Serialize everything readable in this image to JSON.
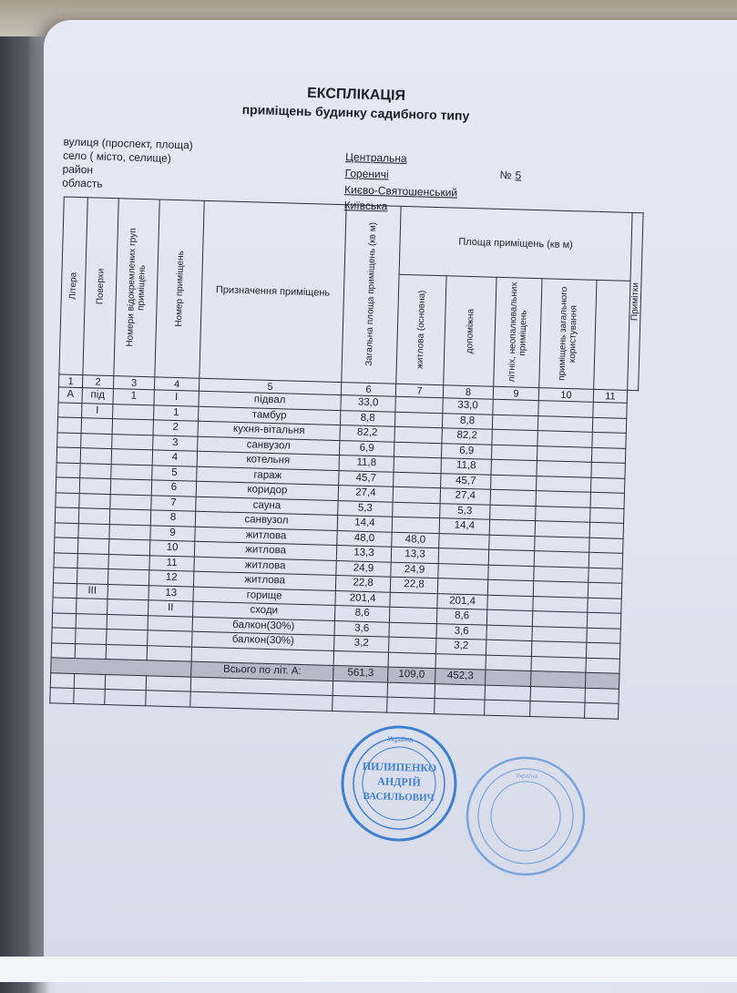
{
  "document": {
    "title": "ЕКСПЛІКАЦІЯ",
    "subtitle": "приміщень  будинку садибного типу",
    "address": [
      {
        "label": "вулиця (проспект, площа)",
        "value": "Центральна"
      },
      {
        "label": "село ( місто, селище)",
        "value": "Гореничі"
      },
      {
        "label": "район",
        "value": "Києво-Святошенський"
      },
      {
        "label": "область",
        "value": "Київська"
      }
    ],
    "number_label": "№",
    "number_value": "5"
  },
  "table": {
    "headers": {
      "litera": "Літера",
      "floors": "Поверхи",
      "groups": "Номери відокремлених груп приміщень",
      "room_no": "Номер приміщень",
      "purpose": "Призначення приміщень",
      "total_area": "Загальна площа приміщень (кв м)",
      "area_group": "Площа приміщень (кв м)",
      "living": "житлова (основна)",
      "auxiliary": "допоміжна",
      "summer": "літніх, неопалювальних приміщень",
      "common": "приміщень загального користування",
      "notes": "Примітки"
    },
    "column_numbers": [
      "1",
      "2",
      "3",
      "4",
      "5",
      "6",
      "7",
      "8",
      "9",
      "10",
      "11"
    ],
    "rows": [
      [
        "А",
        "під",
        "1",
        "I",
        "підвал",
        "33,0",
        "",
        "33,0"
      ],
      [
        "",
        "I",
        "",
        "1",
        "тамбур",
        "8,8",
        "",
        "8,8"
      ],
      [
        "",
        "",
        "",
        "2",
        "кухня-вітальня",
        "82,2",
        "",
        "82,2"
      ],
      [
        "",
        "",
        "",
        "3",
        "санвузол",
        "6,9",
        "",
        "6,9"
      ],
      [
        "",
        "",
        "",
        "4",
        "котельня",
        "11,8",
        "",
        "11,8"
      ],
      [
        "",
        "",
        "",
        "5",
        "гараж",
        "45,7",
        "",
        "45,7"
      ],
      [
        "",
        "",
        "",
        "6",
        "коридор",
        "27,4",
        "",
        "27,4"
      ],
      [
        "",
        "",
        "",
        "7",
        "сауна",
        "5,3",
        "",
        "5,3"
      ],
      [
        "",
        "",
        "",
        "8",
        "санвузол",
        "14,4",
        "",
        "14,4"
      ],
      [
        "",
        "",
        "",
        "9",
        "житлова",
        "48,0",
        "48,0",
        ""
      ],
      [
        "",
        "",
        "",
        "10",
        "житлова",
        "13,3",
        "13,3",
        ""
      ],
      [
        "",
        "",
        "",
        "11",
        "житлова",
        "24,9",
        "24,9",
        ""
      ],
      [
        "",
        "",
        "",
        "12",
        "житлова",
        "22,8",
        "22,8",
        ""
      ],
      [
        "",
        "III",
        "",
        "13",
        "горище",
        "201,4",
        "",
        "201,4"
      ],
      [
        "",
        "",
        "",
        "II",
        "сходи",
        "8,6",
        "",
        "8,6"
      ],
      [
        "",
        "",
        "",
        "",
        "балкон(30%)",
        "3,6",
        "",
        "3,6"
      ],
      [
        "",
        "",
        "",
        "",
        "балкон(30%)",
        "3,2",
        "",
        "3,2"
      ],
      [
        "",
        "",
        "",
        "",
        "",
        "",
        "",
        ""
      ]
    ],
    "total": {
      "label": "Всього по літ. А:",
      "total_area": "561,3",
      "living": "109,0",
      "auxiliary": "452,3"
    }
  },
  "stamps": [
    {
      "color": "#3f7fd0",
      "text": [
        "Україна",
        "ПИЛИПЕНКО",
        "АНДРІЙ",
        "ВАСИЛЬОВИЧ"
      ]
    },
    {
      "color": "#7aa4dc",
      "text": [
        "Україна"
      ]
    }
  ]
}
